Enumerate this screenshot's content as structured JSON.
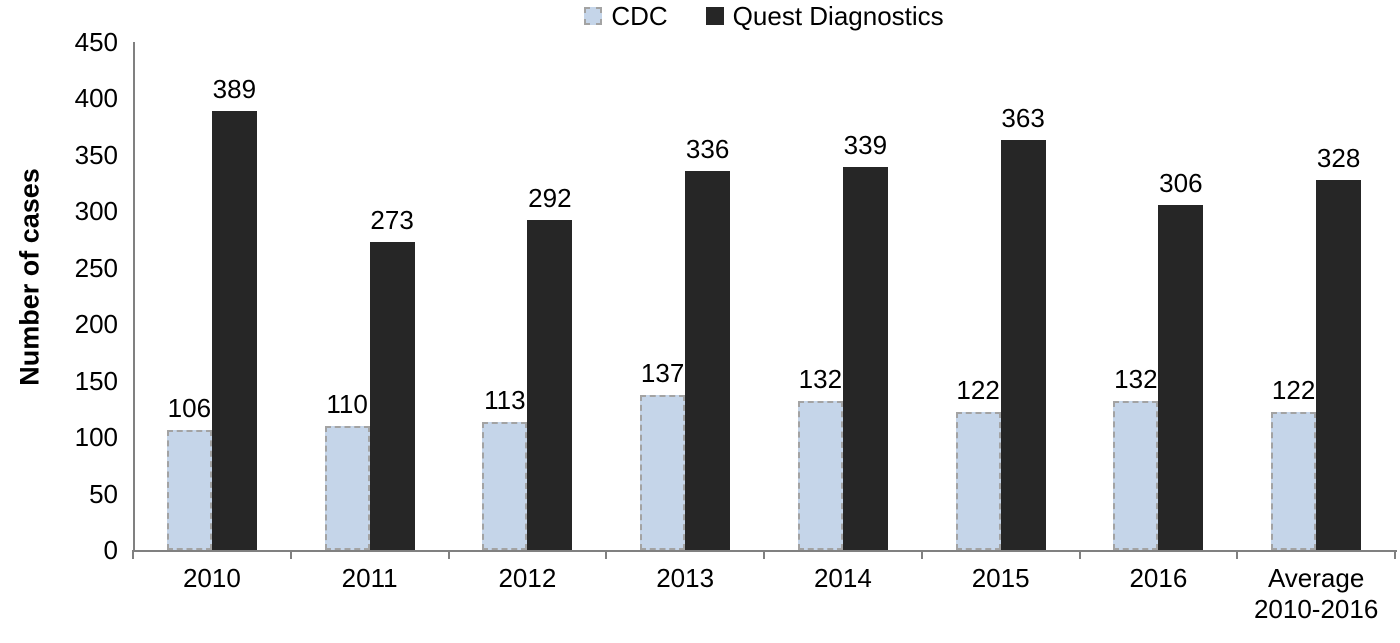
{
  "chart_data": {
    "type": "bar",
    "title": "",
    "categories": [
      "2010",
      "2011",
      "2012",
      "2013",
      "2014",
      "2015",
      "2016",
      "Average 2010-2016"
    ],
    "series": [
      {
        "name": "CDC",
        "values": [
          106,
          110,
          113,
          137,
          132,
          122,
          132,
          122
        ],
        "fill": "#c5d5e9",
        "border": "#a3a3a3"
      },
      {
        "name": "Quest Diagnostics",
        "values": [
          389,
          273,
          292,
          336,
          339,
          363,
          306,
          328
        ],
        "fill": "#262626",
        "border": "#262626"
      }
    ],
    "xlabel": "",
    "ylabel": "Number of cases",
    "ylim": [
      0,
      450
    ],
    "ytick_step": 50,
    "grid": false,
    "legend_position": "top-center",
    "value_labels": true,
    "axis_color": "#808080",
    "text_color": "#000000"
  }
}
